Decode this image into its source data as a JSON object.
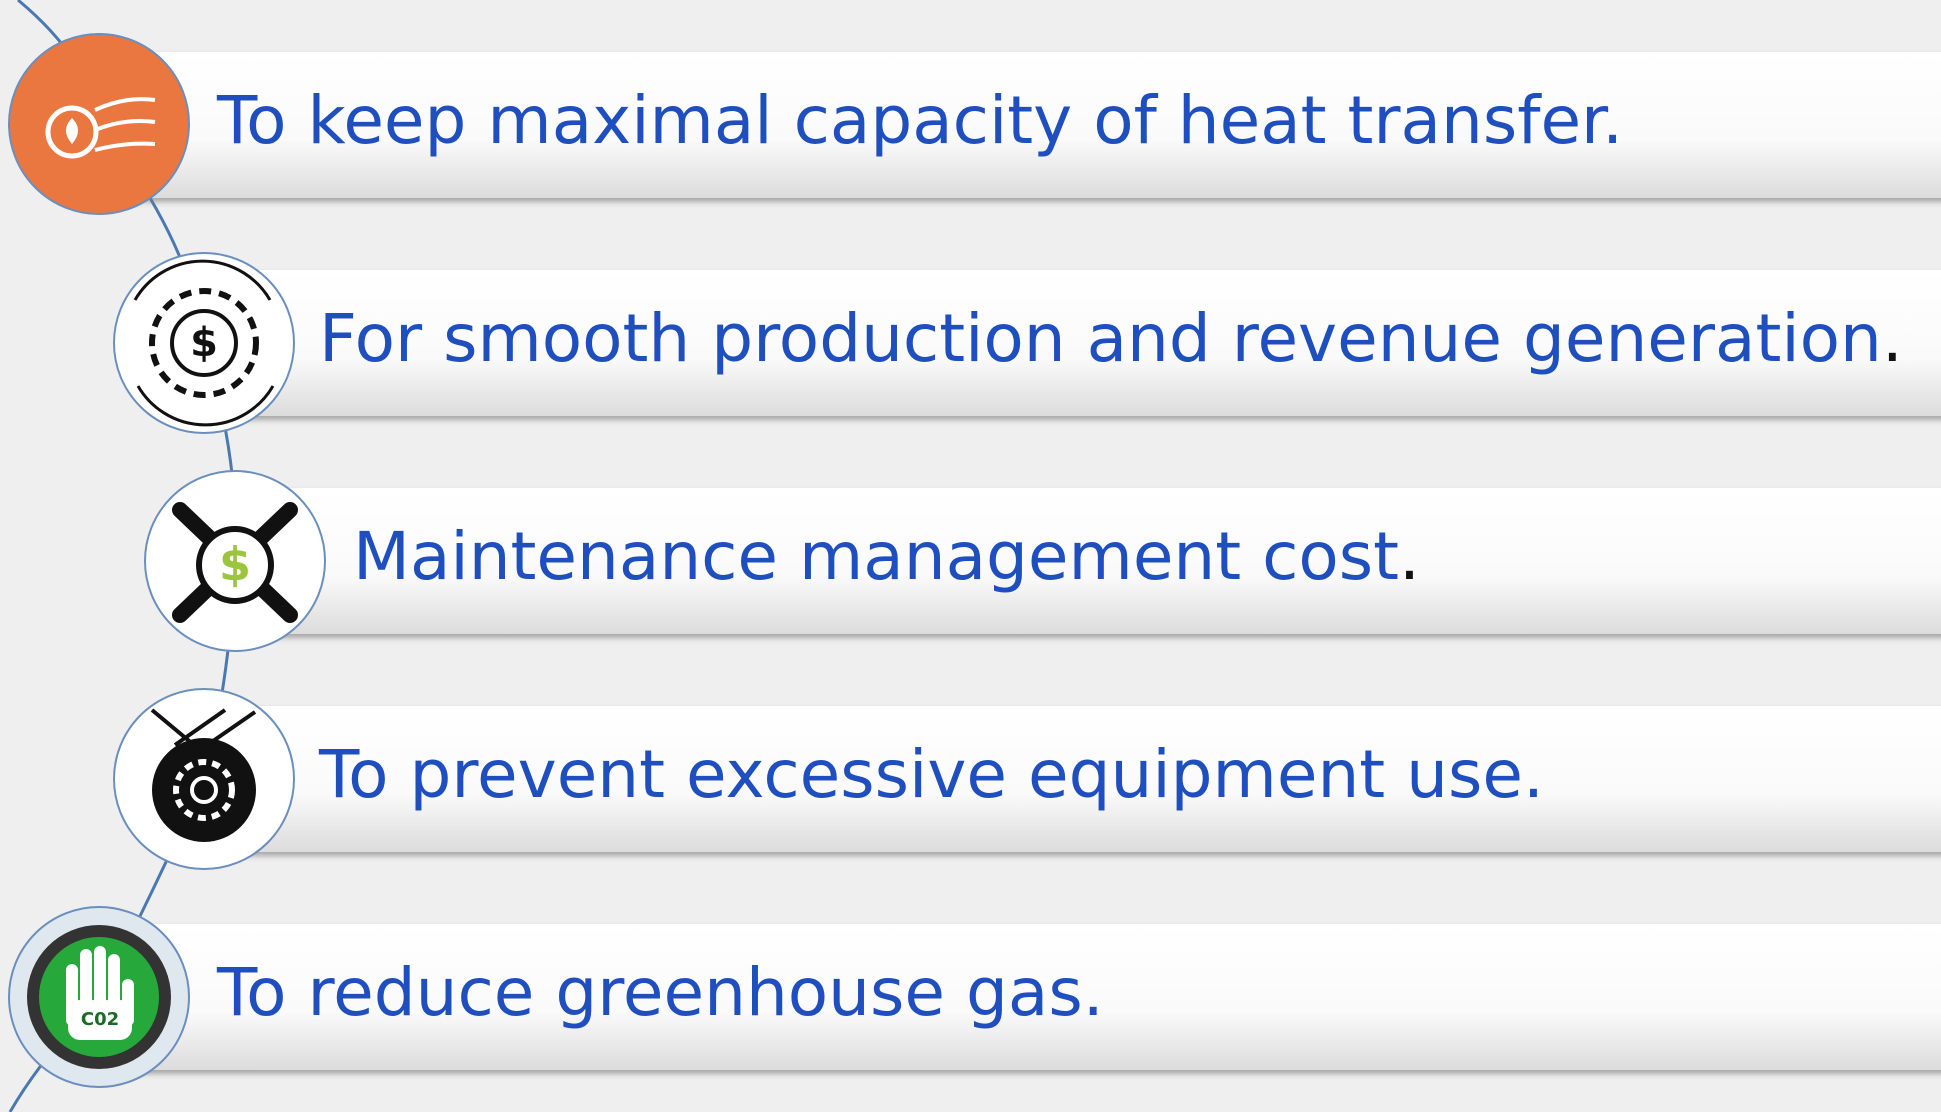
{
  "items": [
    {
      "label": "To keep maximal capacity of heat transfer."
    },
    {
      "label": "For smooth production and revenue generation",
      "punct": "."
    },
    {
      "label": "Maintenance management cost",
      "punct": "."
    },
    {
      "label": "To prevent excessive equipment use."
    },
    {
      "label": "To reduce greenhouse gas.",
      "icon_text": "C02"
    }
  ]
}
